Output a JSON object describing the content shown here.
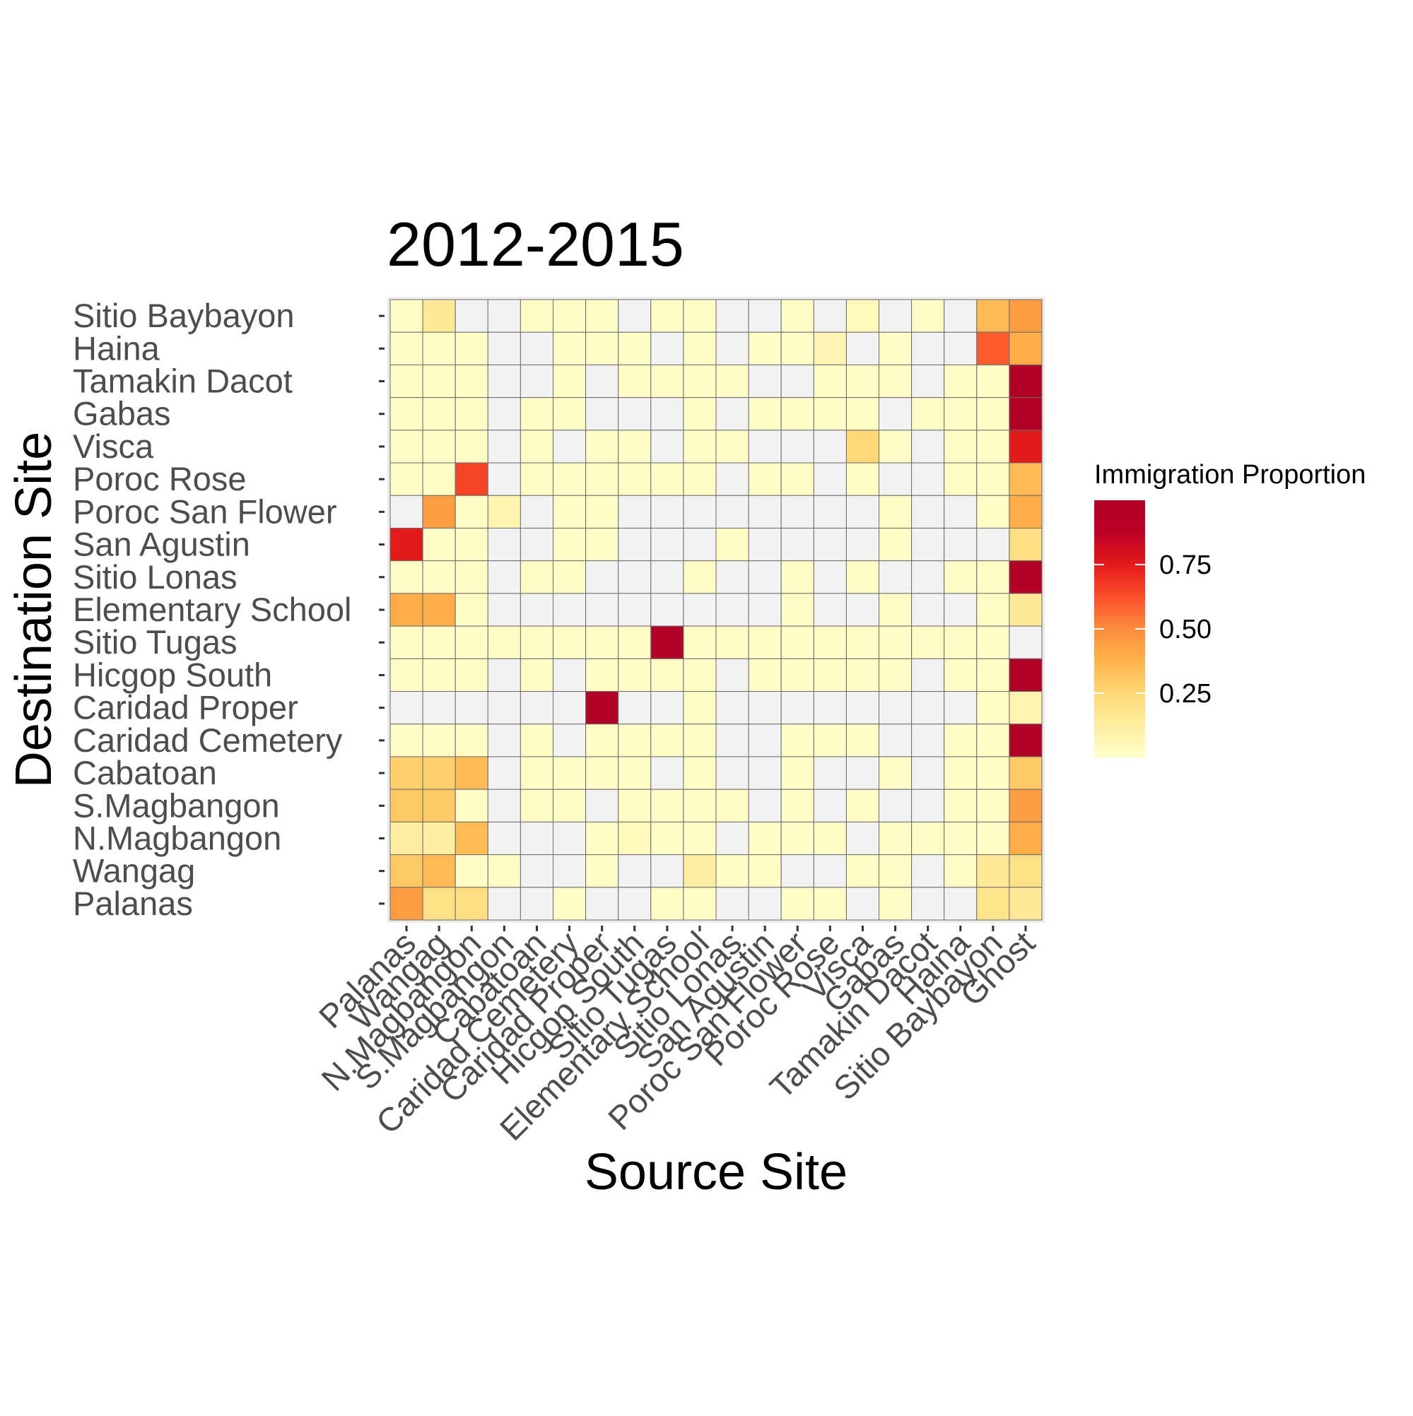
{
  "chart_data": {
    "type": "heatmap",
    "title": "2012-2015",
    "xlabel": "Source Site",
    "ylabel": "Destination Site",
    "x_categories": [
      "Palanas",
      "Wangag",
      "N.Magbangon",
      "S.Magbangon",
      "Cabatoan",
      "Caridad Cemetery",
      "Caridad Proper",
      "Hicgop South",
      "Sitio Tugas",
      "Elementary School",
      "Sitio Lonas",
      "San Agustin",
      "Poroc San Flower",
      "Poroc Rose",
      "Visca",
      "Gabas",
      "Tamakin Dacot",
      "Haina",
      "Sitio Baybayon",
      "Ghost"
    ],
    "y_categories": [
      "Sitio Baybayon",
      "Haina",
      "Tamakin Dacot",
      "Gabas",
      "Visca",
      "Poroc Rose",
      "Poroc San Flower",
      "San Agustin",
      "Sitio Lonas",
      "Elementary School",
      "Sitio Tugas",
      "Hicgop South",
      "Caridad Proper",
      "Caridad Cemetery",
      "Cabatoan",
      "S.Magbangon",
      "N.Magbangon",
      "Wangag",
      "Palanas"
    ],
    "missing_color": "#f2f2f2",
    "grid_line_color": "#6b6b6b",
    "panel_background": "#ebebeb",
    "colorscale": [
      "#ffffcc",
      "#ffeda0",
      "#fed976",
      "#feb24c",
      "#fd8d3c",
      "#fc4e2a",
      "#e31a1c",
      "#bd0026",
      "#b10026"
    ],
    "legend": {
      "title": "Immigration Proportion",
      "min": 0,
      "max": 1,
      "breaks": [
        0.25,
        0.5,
        0.75
      ],
      "break_labels": [
        "0.25",
        "0.50",
        "0.75"
      ],
      "position": "right"
    },
    "values": [
      [
        0.02,
        0.15,
        null,
        null,
        0.02,
        0.02,
        0.02,
        null,
        0.02,
        0.02,
        null,
        null,
        0.02,
        null,
        0.05,
        null,
        0.02,
        null,
        0.35,
        0.45
      ],
      [
        0.02,
        0.02,
        0.02,
        null,
        null,
        0.02,
        0.02,
        0.02,
        null,
        0.02,
        null,
        0.02,
        0.02,
        0.07,
        null,
        0.02,
        null,
        null,
        0.6,
        0.4
      ],
      [
        0.02,
        0.02,
        0.02,
        null,
        null,
        0.02,
        null,
        0.02,
        0.02,
        0.02,
        0.02,
        null,
        null,
        0.02,
        0.02,
        0.02,
        null,
        0.02,
        0.02,
        0.98
      ],
      [
        0.02,
        0.02,
        0.02,
        null,
        0.02,
        0.02,
        null,
        null,
        null,
        0.02,
        null,
        0.02,
        0.02,
        0.02,
        0.02,
        null,
        0.02,
        0.02,
        0.02,
        0.98
      ],
      [
        0.02,
        0.02,
        0.02,
        null,
        0.02,
        null,
        0.02,
        0.02,
        null,
        0.02,
        0.02,
        null,
        null,
        null,
        0.25,
        0.02,
        null,
        0.02,
        0.02,
        0.75
      ],
      [
        0.02,
        0.02,
        0.65,
        null,
        0.02,
        0.02,
        0.02,
        0.02,
        0.02,
        0.02,
        null,
        0.02,
        0.02,
        null,
        0.02,
        null,
        null,
        0.02,
        0.02,
        0.35
      ],
      [
        null,
        0.45,
        0.02,
        0.08,
        null,
        0.02,
        0.02,
        null,
        null,
        null,
        null,
        null,
        null,
        null,
        null,
        0.02,
        null,
        null,
        0.02,
        0.4
      ],
      [
        0.75,
        0.02,
        0.02,
        null,
        null,
        0.02,
        0.02,
        null,
        null,
        null,
        0.02,
        null,
        null,
        null,
        null,
        0.02,
        null,
        null,
        null,
        0.22
      ],
      [
        0.02,
        0.02,
        0.02,
        null,
        0.02,
        0.02,
        null,
        null,
        null,
        0.02,
        null,
        null,
        0.02,
        null,
        0.02,
        null,
        null,
        0.02,
        0.02,
        0.98
      ],
      [
        0.4,
        0.4,
        0.02,
        null,
        null,
        null,
        null,
        null,
        null,
        null,
        null,
        null,
        0.02,
        null,
        null,
        0.02,
        null,
        null,
        0.02,
        0.15
      ],
      [
        0.02,
        0.02,
        0.02,
        0.02,
        0.02,
        0.02,
        0.02,
        0.02,
        0.98,
        0.02,
        0.02,
        0.02,
        0.02,
        0.02,
        0.02,
        0.02,
        0.02,
        0.02,
        0.02,
        null
      ],
      [
        0.02,
        0.02,
        0.02,
        null,
        0.02,
        null,
        0.02,
        0.02,
        0.02,
        0.02,
        null,
        0.02,
        0.02,
        0.02,
        0.02,
        0.02,
        null,
        0.02,
        0.02,
        0.98
      ],
      [
        null,
        null,
        null,
        null,
        null,
        null,
        0.98,
        null,
        null,
        0.02,
        null,
        null,
        null,
        null,
        null,
        null,
        null,
        null,
        0.02,
        0.08
      ],
      [
        0.02,
        0.02,
        0.02,
        null,
        0.02,
        null,
        0.02,
        0.02,
        0.02,
        0.02,
        null,
        null,
        0.02,
        0.02,
        0.02,
        null,
        null,
        0.02,
        0.02,
        0.98
      ],
      [
        0.28,
        0.28,
        0.35,
        null,
        0.02,
        0.02,
        0.02,
        0.02,
        null,
        0.02,
        null,
        null,
        0.02,
        null,
        null,
        0.02,
        null,
        0.02,
        0.02,
        0.3
      ],
      [
        0.3,
        0.3,
        0.02,
        null,
        0.02,
        0.02,
        null,
        0.02,
        0.02,
        0.02,
        0.02,
        null,
        0.02,
        null,
        0.02,
        null,
        null,
        0.02,
        0.02,
        0.45
      ],
      [
        0.12,
        0.12,
        0.35,
        null,
        null,
        null,
        0.02,
        0.05,
        0.02,
        0.02,
        null,
        0.02,
        0.02,
        0.02,
        null,
        0.02,
        0.02,
        0.02,
        0.02,
        0.4
      ],
      [
        0.3,
        0.35,
        0.02,
        0.02,
        null,
        null,
        0.02,
        null,
        null,
        0.12,
        0.02,
        0.02,
        null,
        null,
        0.02,
        0.02,
        null,
        0.02,
        0.15,
        0.2
      ],
      [
        0.45,
        0.2,
        0.22,
        null,
        null,
        0.02,
        null,
        null,
        0.02,
        0.02,
        null,
        null,
        0.02,
        0.02,
        null,
        0.02,
        null,
        null,
        0.18,
        0.15
      ]
    ]
  }
}
